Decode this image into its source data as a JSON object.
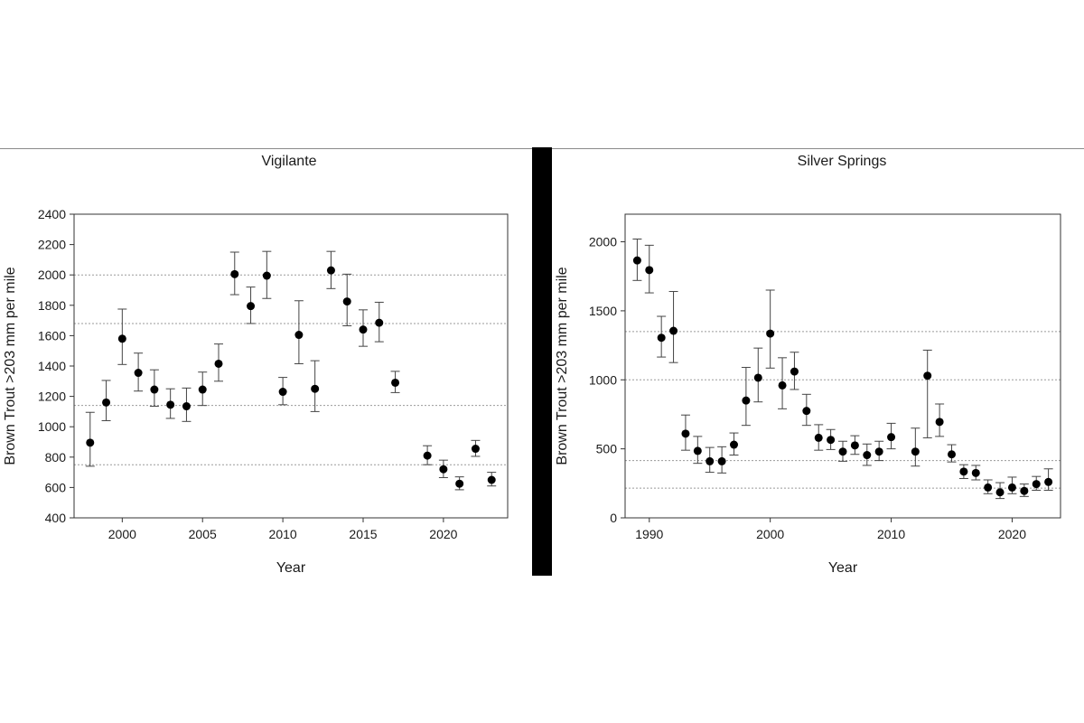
{
  "chart_data": [
    {
      "type": "scatter",
      "title": "Vigilante",
      "xlabel": "Year",
      "ylabel": "Brown Trout >203 mm per mile",
      "xlim": [
        1997,
        2024
      ],
      "ylim": [
        400,
        2400
      ],
      "xticks": [
        2000,
        2005,
        2010,
        2015,
        2020
      ],
      "yticks": [
        400,
        600,
        800,
        1000,
        1200,
        1400,
        1600,
        1800,
        2000,
        2200,
        2400
      ],
      "reference_lines": [
        750,
        1140,
        1680,
        2000
      ],
      "error_bars": true,
      "points": [
        {
          "x": 1998,
          "y": 895,
          "lo": 740,
          "hi": 1095
        },
        {
          "x": 1999,
          "y": 1160,
          "lo": 1040,
          "hi": 1305
        },
        {
          "x": 2000,
          "y": 1580,
          "lo": 1410,
          "hi": 1775
        },
        {
          "x": 2001,
          "y": 1355,
          "lo": 1235,
          "hi": 1485
        },
        {
          "x": 2002,
          "y": 1245,
          "lo": 1135,
          "hi": 1375
        },
        {
          "x": 2003,
          "y": 1145,
          "lo": 1055,
          "hi": 1250
        },
        {
          "x": 2004,
          "y": 1135,
          "lo": 1035,
          "hi": 1255
        },
        {
          "x": 2005,
          "y": 1245,
          "lo": 1140,
          "hi": 1360
        },
        {
          "x": 2006,
          "y": 1415,
          "lo": 1300,
          "hi": 1545
        },
        {
          "x": 2007,
          "y": 2005,
          "lo": 1870,
          "hi": 2150
        },
        {
          "x": 2008,
          "y": 1795,
          "lo": 1680,
          "hi": 1920
        },
        {
          "x": 2009,
          "y": 1995,
          "lo": 1845,
          "hi": 2155
        },
        {
          "x": 2010,
          "y": 1230,
          "lo": 1145,
          "hi": 1325
        },
        {
          "x": 2011,
          "y": 1605,
          "lo": 1415,
          "hi": 1830
        },
        {
          "x": 2012,
          "y": 1250,
          "lo": 1100,
          "hi": 1435
        },
        {
          "x": 2013,
          "y": 2030,
          "lo": 1910,
          "hi": 2155
        },
        {
          "x": 2014,
          "y": 1825,
          "lo": 1665,
          "hi": 2005
        },
        {
          "x": 2015,
          "y": 1640,
          "lo": 1530,
          "hi": 1770
        },
        {
          "x": 2016,
          "y": 1685,
          "lo": 1560,
          "hi": 1820
        },
        {
          "x": 2017,
          "y": 1290,
          "lo": 1225,
          "hi": 1365
        },
        {
          "x": 2019,
          "y": 810,
          "lo": 750,
          "hi": 875
        },
        {
          "x": 2020,
          "y": 720,
          "lo": 665,
          "hi": 780
        },
        {
          "x": 2021,
          "y": 625,
          "lo": 585,
          "hi": 670
        },
        {
          "x": 2022,
          "y": 855,
          "lo": 805,
          "hi": 910
        },
        {
          "x": 2023,
          "y": 650,
          "lo": 610,
          "hi": 700
        }
      ]
    },
    {
      "type": "scatter",
      "title": "Silver Springs",
      "xlabel": "Year",
      "ylabel": "Brown Trout >203 mm per mile",
      "xlim": [
        1988,
        2024
      ],
      "ylim": [
        0,
        2200
      ],
      "xticks": [
        1990,
        2000,
        2010,
        2020
      ],
      "yticks": [
        0,
        500,
        1000,
        1500,
        2000
      ],
      "reference_lines": [
        215,
        415,
        1000,
        1350
      ],
      "error_bars": true,
      "points": [
        {
          "x": 1989,
          "y": 1865,
          "lo": 1720,
          "hi": 2020
        },
        {
          "x": 1990,
          "y": 1795,
          "lo": 1630,
          "hi": 1975
        },
        {
          "x": 1991,
          "y": 1305,
          "lo": 1165,
          "hi": 1460
        },
        {
          "x": 1992,
          "y": 1355,
          "lo": 1125,
          "hi": 1640
        },
        {
          "x": 1993,
          "y": 610,
          "lo": 490,
          "hi": 745
        },
        {
          "x": 1994,
          "y": 485,
          "lo": 395,
          "hi": 590
        },
        {
          "x": 1995,
          "y": 410,
          "lo": 330,
          "hi": 510
        },
        {
          "x": 1996,
          "y": 410,
          "lo": 325,
          "hi": 515
        },
        {
          "x": 1997,
          "y": 530,
          "lo": 455,
          "hi": 615
        },
        {
          "x": 1998,
          "y": 850,
          "lo": 670,
          "hi": 1090
        },
        {
          "x": 1999,
          "y": 1015,
          "lo": 840,
          "hi": 1230
        },
        {
          "x": 2000,
          "y": 1335,
          "lo": 1085,
          "hi": 1650
        },
        {
          "x": 2001,
          "y": 960,
          "lo": 790,
          "hi": 1160
        },
        {
          "x": 2002,
          "y": 1060,
          "lo": 930,
          "hi": 1200
        },
        {
          "x": 2003,
          "y": 775,
          "lo": 670,
          "hi": 895
        },
        {
          "x": 2004,
          "y": 580,
          "lo": 490,
          "hi": 675
        },
        {
          "x": 2005,
          "y": 565,
          "lo": 495,
          "hi": 640
        },
        {
          "x": 2006,
          "y": 480,
          "lo": 410,
          "hi": 555
        },
        {
          "x": 2007,
          "y": 525,
          "lo": 460,
          "hi": 595
        },
        {
          "x": 2008,
          "y": 455,
          "lo": 380,
          "hi": 535
        },
        {
          "x": 2009,
          "y": 480,
          "lo": 415,
          "hi": 555
        },
        {
          "x": 2010,
          "y": 585,
          "lo": 500,
          "hi": 685
        },
        {
          "x": 2012,
          "y": 480,
          "lo": 375,
          "hi": 650
        },
        {
          "x": 2013,
          "y": 1030,
          "lo": 580,
          "hi": 1215
        },
        {
          "x": 2014,
          "y": 695,
          "lo": 590,
          "hi": 825
        },
        {
          "x": 2015,
          "y": 460,
          "lo": 405,
          "hi": 530
        },
        {
          "x": 2016,
          "y": 335,
          "lo": 285,
          "hi": 385
        },
        {
          "x": 2017,
          "y": 325,
          "lo": 275,
          "hi": 380
        },
        {
          "x": 2018,
          "y": 220,
          "lo": 175,
          "hi": 275
        },
        {
          "x": 2019,
          "y": 185,
          "lo": 140,
          "hi": 255
        },
        {
          "x": 2020,
          "y": 220,
          "lo": 175,
          "hi": 295
        },
        {
          "x": 2021,
          "y": 195,
          "lo": 155,
          "hi": 245
        },
        {
          "x": 2022,
          "y": 245,
          "lo": 200,
          "hi": 300
        },
        {
          "x": 2023,
          "y": 260,
          "lo": 200,
          "hi": 355
        }
      ]
    }
  ],
  "colors": {
    "marker": "#000000",
    "error_bar": "#444444",
    "reference_line": "#9a9a9a",
    "axis": "#333333",
    "divider": "#000000"
  }
}
